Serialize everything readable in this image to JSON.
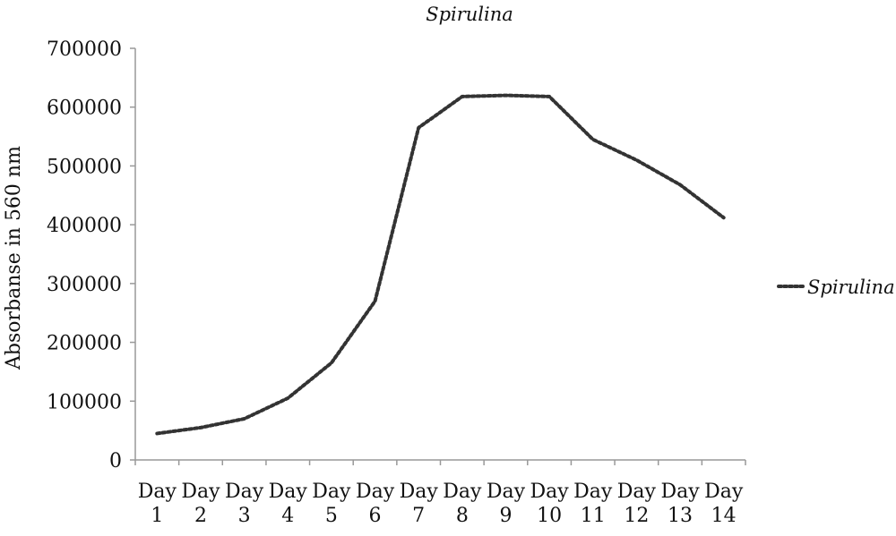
{
  "chart_data": {
    "type": "line",
    "title": "Spirulina",
    "xlabel": "",
    "ylabel": "Absorbanse in 560 nm",
    "categories": [
      [
        "Day",
        "1"
      ],
      [
        "Day",
        "2"
      ],
      [
        "Day",
        "3"
      ],
      [
        "Day",
        "4"
      ],
      [
        "Day",
        "5"
      ],
      [
        "Day",
        "6"
      ],
      [
        "Day",
        "7"
      ],
      [
        "Day",
        "8"
      ],
      [
        "Day",
        "9"
      ],
      [
        "Day",
        "10"
      ],
      [
        "Day",
        "11"
      ],
      [
        "Day",
        "12"
      ],
      [
        "Day",
        "13"
      ],
      [
        "Day",
        "14"
      ]
    ],
    "y_ticks": [
      "0",
      "100000",
      "200000",
      "300000",
      "400000",
      "500000",
      "600000",
      "700000"
    ],
    "ylim": [
      0,
      700000
    ],
    "grid": false,
    "legend_position": "right",
    "series": [
      {
        "name": "Spirulina",
        "color": "#333333",
        "line_style": "dotted",
        "values": [
          45000,
          55000,
          70000,
          105000,
          165000,
          270000,
          565000,
          618000,
          620000,
          618000,
          545000,
          510000,
          468000,
          412000
        ]
      }
    ]
  }
}
